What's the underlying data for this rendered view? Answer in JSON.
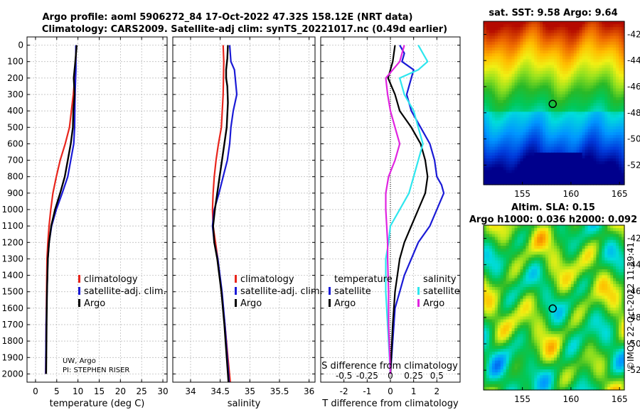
{
  "header": {
    "title_line1": "Argo profile: aoml 5906272_84 17-Oct-2022 47.32S 158.12E (NRT data)",
    "title_line2": "Climatology: CARS2009. Satellite-adj clim: synTS_20221017.nc (0.49d earlier)"
  },
  "colors": {
    "climatology": "#e8251c",
    "satellite": "#1a1ad6",
    "argo": "#000000",
    "s_argo": "#e024e0",
    "s_satellite": "#2ee6ee",
    "grid": "#b5b5b5"
  },
  "credits": {
    "line1": "UW, Argo",
    "line2": "PI: STEPHEN RISER"
  },
  "stamp": "©IMOS 22-Oct-2022 11:39:41",
  "depth_ticks": [
    "0",
    "100",
    "200",
    "300",
    "400",
    "500",
    "600",
    "700",
    "800",
    "900",
    "1000",
    "1100",
    "1200",
    "1300",
    "1400",
    "1500",
    "1600",
    "1700",
    "1800",
    "1900",
    "2000"
  ],
  "chart_data": [
    {
      "type": "line",
      "id": "temperature",
      "xlabel": "temperature (deg C)",
      "ylabel": "depth",
      "xlim": [
        -2,
        31
      ],
      "ylim": [
        2050,
        0
      ],
      "x_ticks": [
        "0",
        "5",
        "10",
        "15",
        "20",
        "25",
        "30"
      ],
      "legend": [
        "climatology",
        "satellite-adj. clim.",
        "Argo"
      ],
      "series": [
        {
          "name": "climatology",
          "points": [
            [
              9.6,
              0
            ],
            [
              9.4,
              150
            ],
            [
              8.9,
              300
            ],
            [
              8.0,
              500
            ],
            [
              7.0,
              600
            ],
            [
              5.8,
              700
            ],
            [
              4.9,
              800
            ],
            [
              4.1,
              900
            ],
            [
              3.6,
              1000
            ],
            [
              3.2,
              1100
            ],
            [
              2.9,
              1200
            ],
            [
              2.7,
              1300
            ],
            [
              2.6,
              1500
            ],
            [
              2.5,
              1700
            ],
            [
              2.4,
              2000
            ]
          ]
        },
        {
          "name": "satellite-adj. clim.",
          "points": [
            [
              9.5,
              0
            ],
            [
              9.5,
              150
            ],
            [
              9.3,
              300
            ],
            [
              9.2,
              500
            ],
            [
              9.0,
              600
            ],
            [
              8.3,
              700
            ],
            [
              7.6,
              800
            ],
            [
              6.3,
              900
            ],
            [
              4.9,
              1000
            ],
            [
              3.8,
              1100
            ],
            [
              3.2,
              1200
            ],
            [
              2.9,
              1300
            ],
            [
              2.7,
              1500
            ],
            [
              2.5,
              1700
            ],
            [
              2.4,
              2000
            ]
          ]
        },
        {
          "name": "Argo",
          "points": [
            [
              9.7,
              0
            ],
            [
              9.5,
              60
            ],
            [
              9.3,
              120
            ],
            [
              9.0,
              200
            ],
            [
              9.2,
              300
            ],
            [
              8.9,
              400
            ],
            [
              8.8,
              500
            ],
            [
              8.3,
              600
            ],
            [
              7.6,
              700
            ],
            [
              6.9,
              800
            ],
            [
              5.8,
              900
            ],
            [
              4.6,
              1000
            ],
            [
              3.7,
              1100
            ],
            [
              3.2,
              1200
            ],
            [
              2.9,
              1300
            ],
            [
              2.7,
              1500
            ],
            [
              2.6,
              1700
            ],
            [
              2.5,
              2000
            ]
          ]
        }
      ]
    },
    {
      "type": "line",
      "id": "salinity",
      "xlabel": "salinity",
      "ylabel": "depth",
      "xlim": [
        33.7,
        36.1
      ],
      "ylim": [
        2050,
        0
      ],
      "x_ticks": [
        "34",
        "34.5",
        "35",
        "35.5",
        "36"
      ],
      "legend": [
        "climatology",
        "satellite-adj. clim.",
        "Argo"
      ],
      "series": [
        {
          "name": "climatology",
          "points": [
            [
              34.55,
              0
            ],
            [
              34.56,
              100
            ],
            [
              34.55,
              300
            ],
            [
              34.52,
              500
            ],
            [
              34.47,
              600
            ],
            [
              34.43,
              700
            ],
            [
              34.4,
              800
            ],
            [
              34.38,
              900
            ],
            [
              34.37,
              1000
            ],
            [
              34.38,
              1100
            ],
            [
              34.42,
              1200
            ],
            [
              34.46,
              1300
            ],
            [
              34.52,
              1500
            ],
            [
              34.58,
              1700
            ],
            [
              34.63,
              1900
            ],
            [
              34.67,
              2050
            ]
          ]
        },
        {
          "name": "satellite-adj. clim.",
          "points": [
            [
              34.66,
              0
            ],
            [
              34.68,
              100
            ],
            [
              34.74,
              150
            ],
            [
              34.78,
              300
            ],
            [
              34.72,
              400
            ],
            [
              34.68,
              500
            ],
            [
              34.66,
              600
            ],
            [
              34.62,
              700
            ],
            [
              34.55,
              800
            ],
            [
              34.48,
              900
            ],
            [
              34.4,
              1000
            ],
            [
              34.37,
              1100
            ],
            [
              34.4,
              1200
            ],
            [
              34.46,
              1300
            ],
            [
              34.53,
              1500
            ],
            [
              34.58,
              1700
            ],
            [
              34.62,
              1900
            ],
            [
              34.65,
              2050
            ]
          ]
        },
        {
          "name": "Argo",
          "points": [
            [
              34.63,
              0
            ],
            [
              34.62,
              80
            ],
            [
              34.6,
              150
            ],
            [
              34.6,
              200
            ],
            [
              34.62,
              250
            ],
            [
              34.63,
              350
            ],
            [
              34.61,
              500
            ],
            [
              34.57,
              600
            ],
            [
              34.53,
              700
            ],
            [
              34.49,
              800
            ],
            [
              34.45,
              900
            ],
            [
              34.41,
              1000
            ],
            [
              34.38,
              1100
            ],
            [
              34.4,
              1200
            ],
            [
              34.45,
              1300
            ],
            [
              34.52,
              1500
            ],
            [
              34.57,
              1700
            ],
            [
              34.61,
              1900
            ],
            [
              34.64,
              2050
            ]
          ]
        }
      ]
    },
    {
      "type": "line",
      "id": "difference",
      "xlabel": "T difference from climatology",
      "x2label": "S difference from climatology",
      "ylabel": "depth",
      "xlim": [
        -3,
        3
      ],
      "ylim": [
        2050,
        0
      ],
      "x_ticks": [
        "-2",
        "-1",
        "0",
        "1",
        "2"
      ],
      "x2_ticks": [
        "-0.5",
        "-0.25",
        "0",
        "0.25",
        "0.5"
      ],
      "legend_temperature": {
        "title": "temperature",
        "items": [
          "satellite",
          "Argo"
        ]
      },
      "legend_salinity": {
        "title": "salinity",
        "items": [
          "satellite",
          "Argo"
        ]
      },
      "series": [
        {
          "name": "T satellite",
          "points": [
            [
              0.4,
              0
            ],
            [
              0.6,
              50
            ],
            [
              0.5,
              100
            ],
            [
              1.0,
              150
            ],
            [
              0.9,
              200
            ],
            [
              0.7,
              300
            ],
            [
              0.9,
              400
            ],
            [
              1.3,
              500
            ],
            [
              1.7,
              600
            ],
            [
              1.9,
              700
            ],
            [
              2.0,
              800
            ],
            [
              2.2,
              850
            ],
            [
              2.3,
              900
            ],
            [
              2.0,
              1000
            ],
            [
              1.7,
              1100
            ],
            [
              1.2,
              1200
            ],
            [
              0.9,
              1300
            ],
            [
              0.6,
              1400
            ],
            [
              0.4,
              1500
            ],
            [
              0.2,
              1600
            ],
            [
              0.1,
              1800
            ],
            [
              0.0,
              2000
            ]
          ]
        },
        {
          "name": "T Argo",
          "points": [
            [
              0.2,
              0
            ],
            [
              0.1,
              100
            ],
            [
              -0.1,
              200
            ],
            [
              0.2,
              300
            ],
            [
              0.4,
              400
            ],
            [
              0.9,
              500
            ],
            [
              1.3,
              600
            ],
            [
              1.5,
              700
            ],
            [
              1.6,
              800
            ],
            [
              1.5,
              900
            ],
            [
              1.2,
              1000
            ],
            [
              0.9,
              1100
            ],
            [
              0.6,
              1200
            ],
            [
              0.4,
              1300
            ],
            [
              0.3,
              1400
            ],
            [
              0.2,
              1500
            ],
            [
              0.1,
              1700
            ],
            [
              0.0,
              2000
            ]
          ]
        },
        {
          "name": "S satellite",
          "points": [
            [
              0.3,
              0
            ],
            [
              0.35,
              50
            ],
            [
              0.4,
              100
            ],
            [
              0.3,
              150
            ],
            [
              0.1,
              200
            ],
            [
              0.15,
              300
            ],
            [
              0.25,
              400
            ],
            [
              0.3,
              500
            ],
            [
              0.35,
              600
            ],
            [
              0.3,
              700
            ],
            [
              0.25,
              800
            ],
            [
              0.2,
              900
            ],
            [
              0.1,
              1000
            ],
            [
              0.0,
              1100
            ],
            [
              -0.02,
              1200
            ],
            [
              -0.05,
              1300
            ],
            [
              -0.05,
              1500
            ],
            [
              -0.03,
              1700
            ],
            [
              0.0,
              2000
            ]
          ]
        },
        {
          "name": "S Argo",
          "points": [
            [
              0.15,
              0
            ],
            [
              0.1,
              100
            ],
            [
              -0.05,
              200
            ],
            [
              -0.03,
              300
            ],
            [
              0.0,
              400
            ],
            [
              0.05,
              500
            ],
            [
              0.1,
              600
            ],
            [
              0.05,
              700
            ],
            [
              -0.02,
              800
            ],
            [
              -0.05,
              900
            ],
            [
              -0.05,
              1000
            ],
            [
              -0.04,
              1100
            ],
            [
              -0.03,
              1200
            ],
            [
              -0.03,
              1300
            ],
            [
              -0.02,
              1500
            ],
            [
              -0.02,
              1700
            ],
            [
              0.0,
              2000
            ]
          ]
        }
      ]
    },
    {
      "type": "heatmap",
      "id": "sst_map",
      "title": "sat. SST: 9.58 Argo: 9.64",
      "xlim": [
        151,
        165.5
      ],
      "ylim": [
        -53.5,
        -41
      ],
      "x_ticks": [
        "155",
        "160",
        "165"
      ],
      "y_ticks": [
        "-42",
        "-44",
        "-46",
        "-48",
        "-50",
        "-52"
      ],
      "marker": {
        "lon": 158.12,
        "lat": -47.32
      }
    },
    {
      "type": "heatmap",
      "id": "sla_map",
      "title_line1": "Altim. SLA: 0.15",
      "title_line2": "Argo h1000: 0.036 h2000: 0.092",
      "xlim": [
        151,
        165.5
      ],
      "ylim": [
        -53.5,
        -41
      ],
      "x_ticks": [
        "155",
        "160",
        "165"
      ],
      "y_ticks": [
        "-42",
        "-44",
        "-46",
        "-48",
        "-50",
        "-52"
      ],
      "marker": {
        "lon": 158.12,
        "lat": -47.32
      }
    }
  ]
}
